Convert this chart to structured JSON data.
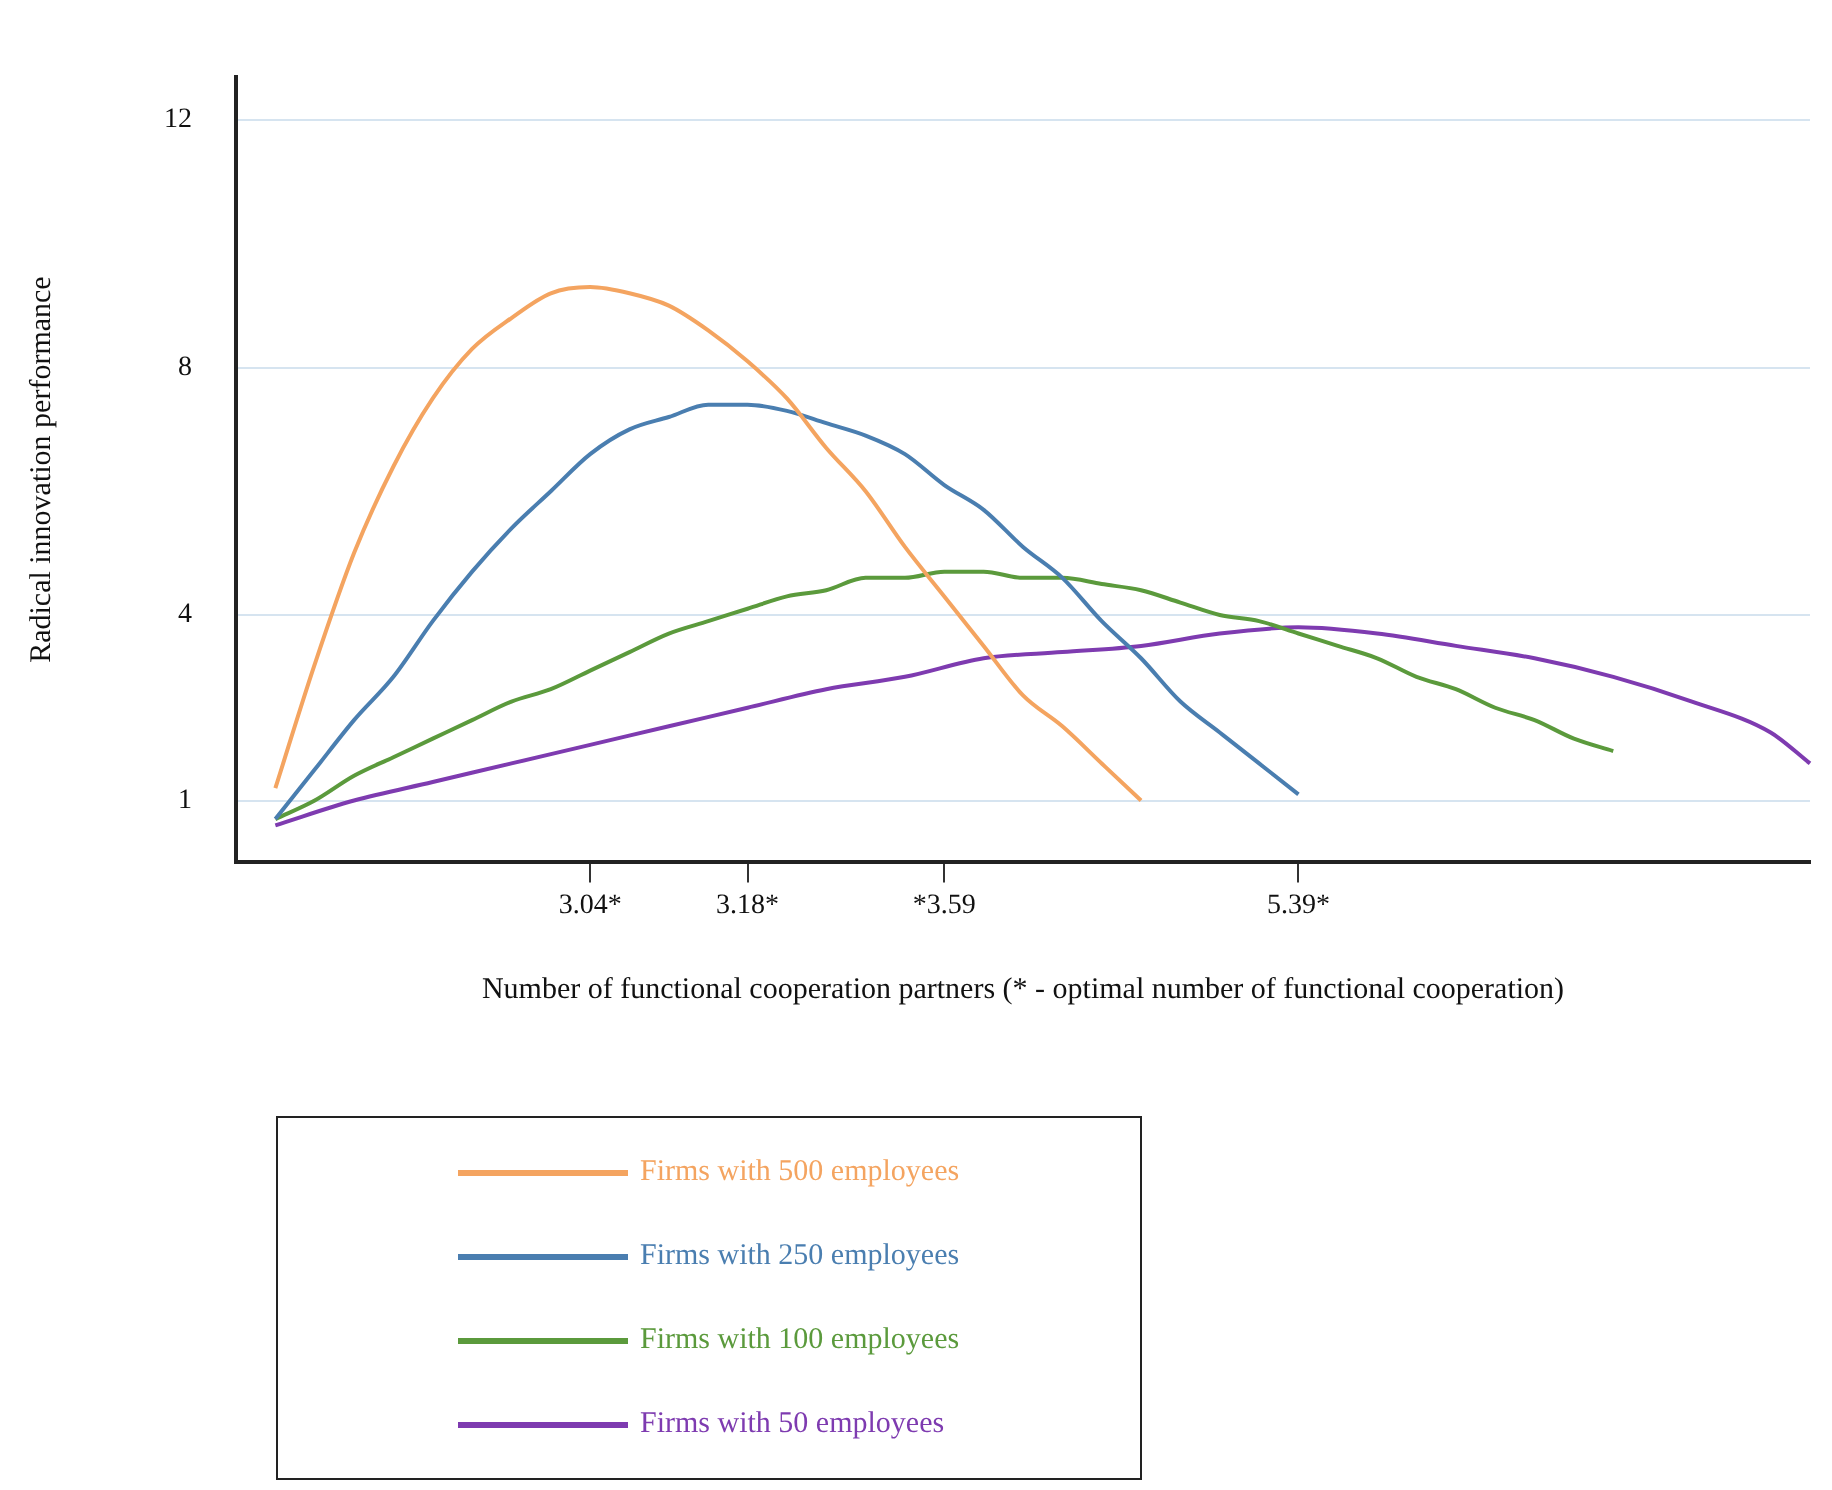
{
  "chart_data": {
    "type": "line",
    "xlabel": "Number of functional cooperation partners (* - optimal number of functional cooperation)",
    "ylabel": "Radical innovation performance",
    "categories": [
      null,
      null,
      null,
      null,
      null,
      null,
      null,
      null,
      null,
      "3.04*",
      null,
      null,
      null,
      "3.18*",
      null,
      null,
      null,
      null,
      "*3.59",
      null,
      null,
      null,
      null,
      null,
      null,
      null,
      null,
      "5.39*",
      null,
      null,
      null,
      null,
      null,
      null,
      null,
      null,
      null,
      null,
      null,
      null,
      null
    ],
    "series": [
      {
        "name": "Firms with 500 employees",
        "color": "#f4a460",
        "values": [
          null,
          1.2,
          3.2,
          5.0,
          6.4,
          7.5,
          8.3,
          8.8,
          9.2,
          9.3,
          9.2,
          9.0,
          8.6,
          8.1,
          7.5,
          6.7,
          6.0,
          5.1,
          4.3,
          3.5,
          2.7,
          2.2,
          1.6,
          1.0,
          null,
          null,
          null,
          null,
          null,
          null,
          null,
          null,
          null,
          null,
          null,
          null,
          null,
          null,
          null,
          null,
          null
        ]
      },
      {
        "name": "Firms with 250 employees",
        "color": "#4a7eb0",
        "values": [
          null,
          0.7,
          1.5,
          2.3,
          3.0,
          3.9,
          4.7,
          5.4,
          6.0,
          6.6,
          7.0,
          7.2,
          7.4,
          7.4,
          7.3,
          7.1,
          6.9,
          6.6,
          6.1,
          5.7,
          5.1,
          4.6,
          3.9,
          3.3,
          2.6,
          2.1,
          1.6,
          1.1,
          null,
          null,
          null,
          null,
          null,
          null,
          null,
          null,
          null,
          null,
          null,
          null,
          null
        ]
      },
      {
        "name": "Firms with 100 employees",
        "color": "#5b9a3c",
        "values": [
          null,
          0.7,
          1.0,
          1.4,
          1.7,
          2.0,
          2.3,
          2.6,
          2.8,
          3.1,
          3.4,
          3.7,
          3.9,
          4.1,
          4.3,
          4.4,
          4.6,
          4.6,
          4.7,
          4.7,
          4.6,
          4.6,
          4.5,
          4.4,
          4.2,
          4.0,
          3.9,
          3.7,
          3.5,
          3.3,
          3.0,
          2.8,
          2.5,
          2.3,
          2.0,
          1.8,
          null,
          null,
          null,
          null,
          null
        ]
      },
      {
        "name": "Firms with 50 employees",
        "color": "#7e3bb0",
        "values": [
          null,
          0.6,
          null,
          1.0,
          null,
          1.3,
          null,
          1.6,
          null,
          1.9,
          null,
          2.2,
          null,
          2.5,
          null,
          2.8,
          null,
          3.0,
          null,
          3.3,
          null,
          3.4,
          null,
          3.5,
          null,
          3.7,
          null,
          3.8,
          null,
          3.7,
          null,
          3.5,
          null,
          3.3,
          null,
          3.0,
          null,
          2.6,
          null,
          2.1,
          1.6
        ]
      }
    ],
    "ylim": [
      0,
      12.7
    ],
    "yticks": [
      1,
      4,
      8,
      12
    ],
    "grid": "y",
    "legend": "bottom",
    "marker": "none",
    "line_style": "solid"
  }
}
